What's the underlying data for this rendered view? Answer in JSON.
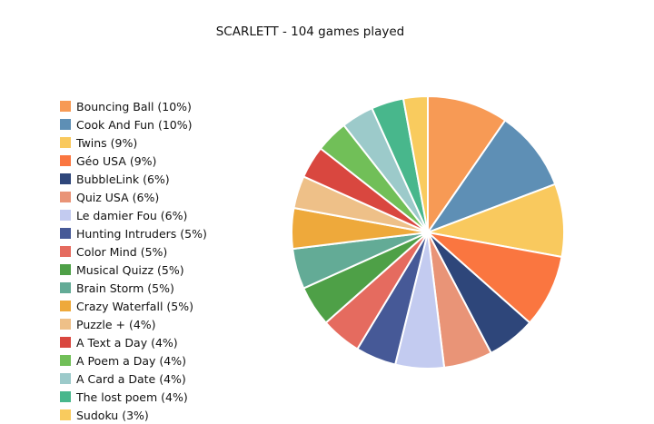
{
  "chart_data": {
    "type": "pie",
    "title": "SCARLETT - 104 games played",
    "legend_position": "left",
    "slices": [
      {
        "label": "Bouncing Ball (10%)",
        "value": 10,
        "color": "#F79A55"
      },
      {
        "label": "Cook And Fun (10%)",
        "value": 10,
        "color": "#5E8FB5"
      },
      {
        "label": "Twins (9%)",
        "value": 9,
        "color": "#F9C95E"
      },
      {
        "label": "Géo USA (9%)",
        "value": 9,
        "color": "#FA7640"
      },
      {
        "label": "BubbleLink (6%)",
        "value": 6,
        "color": "#2E467A"
      },
      {
        "label": "Quiz USA (6%)",
        "value": 6,
        "color": "#E99477"
      },
      {
        "label": "Le damier Fou (6%)",
        "value": 6,
        "color": "#C3CBF0"
      },
      {
        "label": "Hunting Intruders (5%)",
        "value": 5,
        "color": "#465997"
      },
      {
        "label": "Color Mind (5%)",
        "value": 5,
        "color": "#E56B5F"
      },
      {
        "label": "Musical Quizz (5%)",
        "value": 5,
        "color": "#4EA047"
      },
      {
        "label": "Brain Storm (5%)",
        "value": 5,
        "color": "#63AB96"
      },
      {
        "label": "Crazy Waterfall (5%)",
        "value": 5,
        "color": "#EEA93B"
      },
      {
        "label": "Puzzle + (4%)",
        "value": 4,
        "color": "#EEC088"
      },
      {
        "label": "A Text a Day (4%)",
        "value": 4,
        "color": "#D9473F"
      },
      {
        "label": "A Poem a Day (4%)",
        "value": 4,
        "color": "#71BF58"
      },
      {
        "label": "A Card a Date (4%)",
        "value": 4,
        "color": "#9CCACA"
      },
      {
        "label": "The lost poem (4%)",
        "value": 4,
        "color": "#48B78C"
      },
      {
        "label": "Sudoku (3%)",
        "value": 3,
        "color": "#F9CB5E"
      }
    ]
  }
}
